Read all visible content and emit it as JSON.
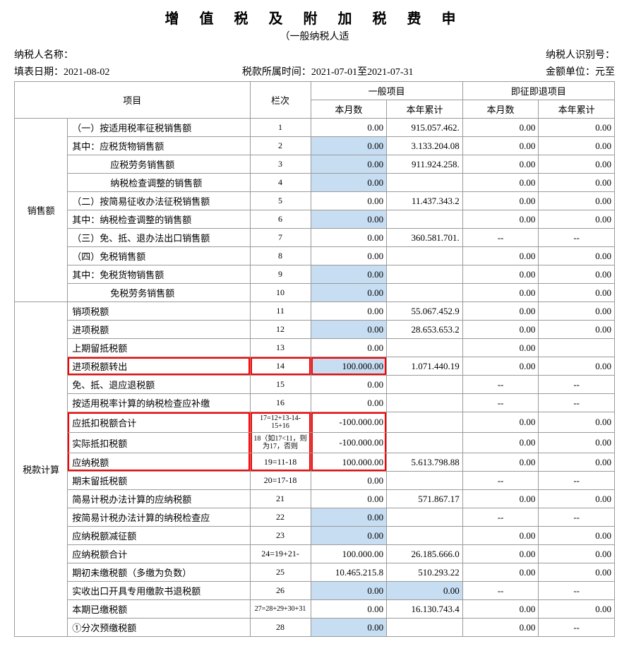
{
  "title": "增 值 税 及 附 加 税 费 申",
  "subtitle": "（一般纳税人适",
  "header": {
    "taxpayer_name_label": "纳税人名称：",
    "taxpayer_id_label": "纳税人识别号：",
    "fill_date_label": "填表日期：",
    "fill_date": "2021-08-02",
    "period_label": "税款所属时间：",
    "period": "2021-07-01至2021-07-31",
    "unit_label": "金额单位：元至"
  },
  "columns": {
    "project": "项目",
    "col_num": "栏次",
    "general": "一般项目",
    "refund": "即征即退项目",
    "this_month": "本月数",
    "this_year": "本年累计"
  },
  "sections": {
    "sales": "销售额",
    "tax_calc": "税款计算"
  },
  "rows": [
    {
      "sec": "sales",
      "item": "（一）按适用税率征税销售额",
      "num": "1",
      "m1": "0.00",
      "y1": "915.057.462.",
      "m2": "0.00",
      "y2": "0.00",
      "m1e": false
    },
    {
      "sec": "sales",
      "item": "其中：应税货物销售额",
      "num": "2",
      "m1": "0.00",
      "y1": "3.133.204.08",
      "m2": "0.00",
      "y2": "0.00",
      "m1e": true
    },
    {
      "sec": "sales",
      "item": "应税劳务销售额",
      "num": "3",
      "indent": 2,
      "m1": "0.00",
      "y1": "911.924.258.",
      "m2": "0.00",
      "y2": "0.00",
      "m1e": true
    },
    {
      "sec": "sales",
      "item": "纳税检查调整的销售额",
      "num": "4",
      "indent": 2,
      "m1": "0.00",
      "y1": "",
      "m2": "0.00",
      "y2": "0.00",
      "m1e": true
    },
    {
      "sec": "sales",
      "item": "（二）按简易征收办法征税销售额",
      "num": "5",
      "m1": "0.00",
      "y1": "11.437.343.2",
      "m2": "0.00",
      "y2": "0.00",
      "m1e": false
    },
    {
      "sec": "sales",
      "item": "其中：纳税检查调整的销售额",
      "num": "6",
      "m1": "0.00",
      "y1": "",
      "m2": "0.00",
      "y2": "0.00",
      "m1e": true
    },
    {
      "sec": "sales",
      "item": "（三）免、抵、退办法出口销售额",
      "num": "7",
      "m1": "0.00",
      "y1": "360.581.701.",
      "m2": "--",
      "y2": "--",
      "m1e": false,
      "dash": true
    },
    {
      "sec": "sales",
      "item": "（四）免税销售额",
      "num": "8",
      "m1": "0.00",
      "y1": "",
      "m2": "0.00",
      "y2": "0.00",
      "m1e": false
    },
    {
      "sec": "sales",
      "item": "其中：免税货物销售额",
      "num": "9",
      "m1": "0.00",
      "y1": "",
      "m2": "0.00",
      "y2": "0.00",
      "m1e": true
    },
    {
      "sec": "sales",
      "item": "免税劳务销售额",
      "num": "10",
      "indent": 2,
      "m1": "0.00",
      "y1": "",
      "m2": "0.00",
      "y2": "0.00",
      "m1e": true
    },
    {
      "sec": "tax",
      "item": "销项税额",
      "num": "11",
      "m1": "0.00",
      "y1": "55.067.452.9",
      "m2": "0.00",
      "y2": "0.00",
      "m1e": false
    },
    {
      "sec": "tax",
      "item": "进项税额",
      "num": "12",
      "m1": "0.00",
      "y1": "28.653.653.2",
      "m2": "0.00",
      "y2": "0.00",
      "m1e": true
    },
    {
      "sec": "tax",
      "item": "上期留抵税额",
      "num": "13",
      "m1": "0.00",
      "y1": "",
      "m2": "0.00",
      "y2": "",
      "m1e": false
    },
    {
      "sec": "tax",
      "item": "进项税额转出",
      "num": "14",
      "m1": "100.000.00",
      "y1": "1.071.440.19",
      "m2": "0.00",
      "y2": "0.00",
      "m1e": true,
      "hl": "single"
    },
    {
      "sec": "tax",
      "item": "免、抵、退应退税额",
      "num": "15",
      "m1": "0.00",
      "y1": "",
      "m2": "--",
      "y2": "--",
      "m1e": false,
      "dash": true
    },
    {
      "sec": "tax",
      "item": "按适用税率计算的纳税检查应补缴",
      "num": "16",
      "m1": "0.00",
      "y1": "",
      "m2": "--",
      "y2": "--",
      "m1e": false,
      "dash": true
    },
    {
      "sec": "tax",
      "item": "应抵扣税额合计",
      "num": "17=12+13-14-15+16",
      "m1": "-100.000.00",
      "y1": "",
      "m2": "0.00",
      "y2": "0.00",
      "m1e": false,
      "small": true,
      "hl": "top"
    },
    {
      "sec": "tax",
      "item": "实际抵扣税额",
      "num": "18（如17<11，则为17，否则",
      "m1": "-100.000.00",
      "y1": "",
      "m2": "0.00",
      "y2": "0.00",
      "m1e": false,
      "small": true,
      "hl": "mid"
    },
    {
      "sec": "tax",
      "item": "应纳税额",
      "num": "19=11-18",
      "m1": "100.000.00",
      "y1": "5.613.798.88",
      "m2": "0.00",
      "y2": "0.00",
      "m1e": false,
      "hl": "bot"
    },
    {
      "sec": "tax",
      "item": "期末留抵税额",
      "num": "20=17-18",
      "m1": "0.00",
      "y1": "",
      "m2": "--",
      "y2": "--",
      "m1e": false,
      "dash": true
    },
    {
      "sec": "tax",
      "item": "简易计税办法计算的应纳税额",
      "num": "21",
      "m1": "0.00",
      "y1": "571.867.17",
      "m2": "0.00",
      "y2": "0.00",
      "m1e": false
    },
    {
      "sec": "tax",
      "item": "按简易计税办法计算的纳税检查应",
      "num": "22",
      "m1": "0.00",
      "y1": "",
      "m2": "--",
      "y2": "--",
      "m1e": true,
      "dash": true
    },
    {
      "sec": "tax",
      "item": "应纳税额减征额",
      "num": "23",
      "m1": "0.00",
      "y1": "",
      "m2": "0.00",
      "y2": "0.00",
      "m1e": true
    },
    {
      "sec": "tax",
      "item": "应纳税额合计",
      "num": "24=19+21-",
      "m1": "100.000.00",
      "y1": "26.185.666.0",
      "m2": "0.00",
      "y2": "0.00",
      "m1e": false
    },
    {
      "sec": "tax",
      "item": "期初未缴税额（多缴为负数）",
      "num": "25",
      "m1": "10.465.215.8",
      "y1": "510.293.22",
      "m2": "0.00",
      "y2": "0.00",
      "m1e": false
    },
    {
      "sec": "tax",
      "item": "实收出口开具专用缴款书退税额",
      "num": "26",
      "m1": "0.00",
      "y1": "0.00",
      "m2": "--",
      "y2": "--",
      "m1e": true,
      "y1e": true,
      "dash": true
    },
    {
      "sec": "tax",
      "item": "本期已缴税额",
      "num": "27=28+29+30+31",
      "m1": "0.00",
      "y1": "16.130.743.4",
      "m2": "0.00",
      "y2": "0.00",
      "m1e": false,
      "small": true
    },
    {
      "sec": "tax",
      "item": "①分次预缴税额",
      "num": "28",
      "m1": "0.00",
      "y1": "",
      "m2": "0.00",
      "y2": "--",
      "m1e": true,
      "dash2": true
    }
  ]
}
